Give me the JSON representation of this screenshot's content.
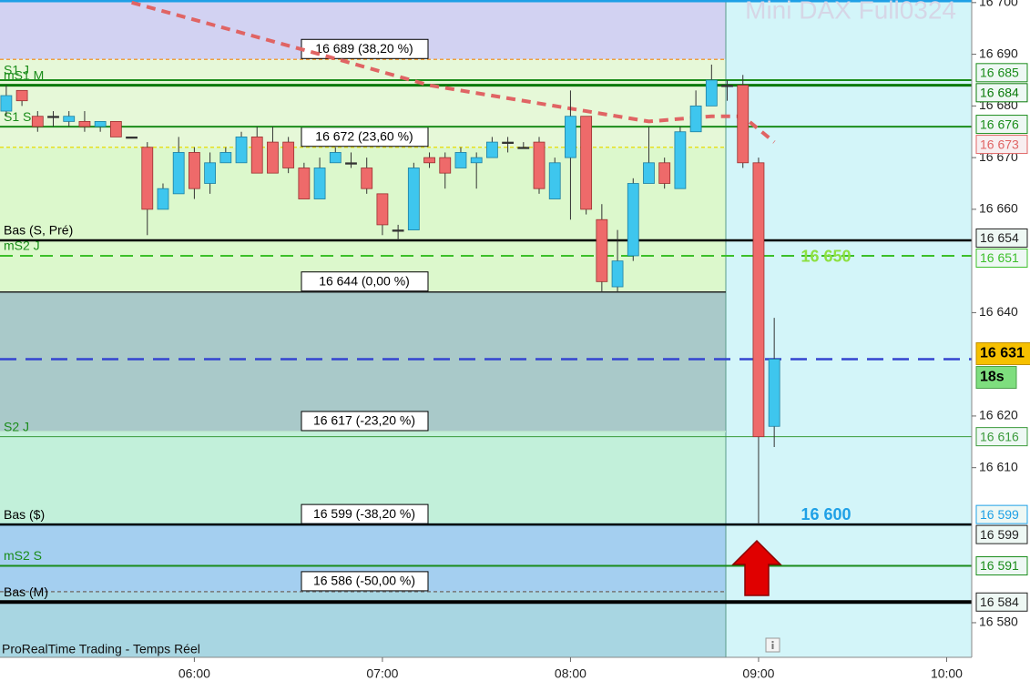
{
  "chart_data": {
    "type": "candlestick",
    "title": "Mini DAX Full0324",
    "source": "ProRealTime Trading - Temps Réel",
    "x": [
      "05:00",
      "05:05",
      "05:10",
      "05:15",
      "05:20",
      "05:25",
      "05:30",
      "05:35",
      "05:40",
      "05:45",
      "05:50",
      "05:55",
      "06:00",
      "06:05",
      "06:10",
      "06:15",
      "06:20",
      "06:25",
      "06:30",
      "06:35",
      "06:40",
      "06:45",
      "06:50",
      "06:55",
      "07:00",
      "07:05",
      "07:10",
      "07:15",
      "07:20",
      "07:25",
      "07:30",
      "07:35",
      "07:40",
      "07:45",
      "07:50",
      "07:55",
      "08:00",
      "08:05",
      "08:10",
      "08:15",
      "08:20",
      "08:25",
      "08:30",
      "08:35",
      "08:40",
      "08:45",
      "08:50",
      "08:55",
      "09:00",
      "09:05"
    ],
    "open": [
      16679,
      16683,
      16678,
      16678,
      16677,
      16677,
      16676,
      16677,
      16674,
      16672,
      16660,
      16663,
      16671,
      16665,
      16669,
      16669,
      16674,
      16673,
      16673,
      16668,
      16662,
      16669,
      16669,
      16668,
      16663,
      16656,
      16656,
      16670,
      16670,
      16668,
      16669,
      16670,
      16673,
      16672,
      16673,
      16662,
      16670,
      16678,
      16658,
      16645,
      16651,
      16665,
      16669,
      16664,
      16675,
      16680,
      16684,
      16684,
      16669,
      16618
    ],
    "high": [
      16684,
      16683,
      16679,
      16679,
      16679,
      16679,
      16677,
      16677,
      16674,
      16673,
      16665,
      16674,
      16672,
      16671,
      16672,
      16675,
      16676,
      16676,
      16674,
      16669,
      16670,
      16672,
      16671,
      16670,
      16663,
      16657,
      16669,
      16671,
      16671,
      16672,
      16671,
      16674,
      16674,
      16673,
      16674,
      16670,
      16683,
      16678,
      16661,
      16656,
      16666,
      16676,
      16670,
      16676,
      16683,
      16688,
      16685,
      16686,
      16670,
      16639
    ],
    "low": [
      16678,
      16680,
      16675,
      16676,
      16676,
      16675,
      16675,
      16674,
      16674,
      16655,
      16660,
      16663,
      16662,
      16663,
      16669,
      16669,
      16667,
      16667,
      16667,
      16662,
      16662,
      16669,
      16668,
      16663,
      16655,
      16654,
      16656,
      16668,
      16664,
      16668,
      16664,
      16670,
      16671,
      16672,
      16663,
      16662,
      16658,
      16659,
      16644,
      16644,
      16650,
      16665,
      16664,
      16664,
      16675,
      16680,
      16681,
      16668,
      16599,
      16614
    ],
    "close": [
      16682,
      16681,
      16676,
      16678,
      16678,
      16676,
      16677,
      16674,
      16674,
      16660,
      16664,
      16671,
      16664,
      16669,
      16671,
      16674,
      16667,
      16667,
      16668,
      16662,
      16668,
      16671,
      16669,
      16664,
      16657,
      16656,
      16668,
      16669,
      16667,
      16671,
      16670,
      16673,
      16673,
      16672,
      16664,
      16669,
      16678,
      16660,
      16646,
      16650,
      16665,
      16669,
      16665,
      16675,
      16680,
      16685,
      16684,
      16669,
      16616,
      16631
    ],
    "up_color": "#3ec6ee",
    "down_color": "#ee6a6a",
    "xlim": [
      "04:58",
      "10:08"
    ],
    "xticks": [
      "06:00",
      "07:00",
      "08:00",
      "09:00",
      "10:00"
    ],
    "ylim": [
      16573.3,
      16700.5
    ],
    "yticks": [
      {
        "value": 16700,
        "label": "16 700"
      },
      {
        "value": 16690,
        "label": "16 690"
      },
      {
        "value": 16680,
        "label": "16 680"
      },
      {
        "value": 16670,
        "label": "16 670"
      },
      {
        "value": 16660,
        "label": "16 660"
      },
      {
        "value": 16640,
        "label": "16 640"
      },
      {
        "value": 16620,
        "label": "16 620"
      },
      {
        "value": 16610,
        "label": "16 610"
      },
      {
        "value": 16580,
        "label": "16 580"
      }
    ],
    "moving_average": {
      "color": "#e06464",
      "x": [
        "05:40",
        "06:40",
        "07:15",
        "07:55",
        "08:25",
        "08:45",
        "08:55",
        "09:05"
      ],
      "values": [
        16700,
        16690,
        16684,
        16680,
        16677,
        16678,
        16678,
        16673
      ],
      "last_label": "16 673"
    },
    "fib_top_fill": "#d2d2f2",
    "fib_levels": [
      {
        "value": 16689,
        "label": "16 689 (38,20 %)",
        "color": "#f0a040",
        "dash": true,
        "fill": "#e6f8d8"
      },
      {
        "value": 16672,
        "label": "16 672 (23,60 %)",
        "color": "#e8e020",
        "dash": true,
        "fill": "#dcf8cc"
      },
      {
        "value": 16644,
        "label": "16 644 (0,00 %)",
        "color": "#222222",
        "dash": false,
        "fill": "#a9c9c9"
      },
      {
        "value": 16617,
        "label": "16 617 (-23,20 %)",
        "color": "#bfe8cf",
        "dash": false,
        "fill": "#c2f0da"
      },
      {
        "value": 16599,
        "label": "16 599 (-38,20 %)",
        "color": "#3050a0",
        "dash": true,
        "fill": "#a4cff0"
      },
      {
        "value": 16586,
        "label": "16 586 (-50,00 %)",
        "color": "#777777",
        "dash": true,
        "fill": "#a8d6e2"
      }
    ],
    "levels": [
      {
        "name": "S1 J",
        "value": 16685,
        "value_label": "16 685",
        "color": "#1a8c1a",
        "width": 2,
        "dash": false
      },
      {
        "name": "mS1 M",
        "value": 16684,
        "value_label": "16 684",
        "color": "#0a7a0a",
        "width": 3,
        "dash": false
      },
      {
        "name": "S1 S",
        "value": 16676,
        "value_label": "16 676",
        "color": "#1a8c1a",
        "width": 2,
        "dash": false
      },
      {
        "name": "Bas (S, Pré)",
        "value": 16654,
        "value_label": "16 654",
        "color": "#000000",
        "width": 2.5,
        "dash": false
      },
      {
        "name": "mS2 J",
        "value": 16651,
        "value_label": "16 651",
        "color": "#3cbf2a",
        "width": 2,
        "dash": true
      },
      {
        "name": "S2 J",
        "value": 16616,
        "value_label": "16 616",
        "color": "#3a9a3a",
        "width": 1,
        "dash": false
      },
      {
        "value": 16599,
        "value_label": "16 599",
        "color": "#1ea0e6",
        "width": 2.5,
        "dash": false
      },
      {
        "name": "Bas ($)",
        "value": 16599,
        "value_label": "16 599",
        "color": "#000000",
        "width": 2.5,
        "dash": false
      },
      {
        "name": "mS2 S",
        "value": 16591,
        "value_label": "16 591",
        "color": "#1a8c1a",
        "width": 2,
        "dash": false
      },
      {
        "name": "Bas (M)",
        "value": 16584,
        "value_label": "16 584",
        "color": "#000000",
        "width": 4,
        "dash": false
      }
    ],
    "annotations": [
      {
        "value": 16650,
        "label": "16 650",
        "color": "#8ce040"
      },
      {
        "value": 16600,
        "label": "16 600",
        "color": "#1ea0e6"
      }
    ],
    "last_price": {
      "value": 16631,
      "label": "16 631",
      "timer": "18s",
      "color": "#3444d0"
    },
    "grid": false
  }
}
